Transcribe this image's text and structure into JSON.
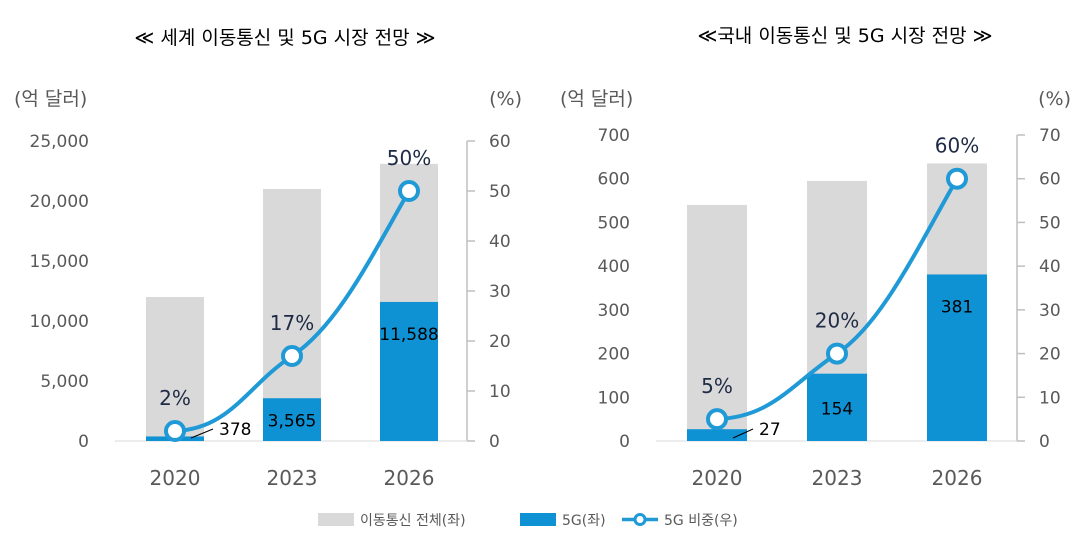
{
  "colors": {
    "total": "#d9d9d9",
    "fiveg": "#0f92d4",
    "line": "#1f9ad6",
    "axis": "#bfbfbf"
  },
  "legend": {
    "total": "이동통신 전체(좌)",
    "fiveg": "5G(좌)",
    "share": "5G 비중(우)"
  },
  "chart_data": [
    {
      "type": "bar",
      "title": "≪ 세계 이동통신 및 5G 시장 전망 ≫",
      "ylabel": "(억 달러)",
      "y2label": "(%)",
      "ylim": [
        0,
        25000
      ],
      "y2lim": [
        0,
        60
      ],
      "yticks": [
        "0",
        "5,000",
        "10,000",
        "15,000",
        "20,000",
        "25,000"
      ],
      "y2ticks": [
        "0",
        "10",
        "20",
        "30",
        "40",
        "50",
        "60"
      ],
      "categories": [
        "2020",
        "2023",
        "2026"
      ],
      "series": [
        {
          "name": "이동통신 전체(좌)",
          "axis": "left",
          "values": [
            12000,
            21000,
            23100
          ]
        },
        {
          "name": "5G(좌)",
          "axis": "left",
          "values": [
            378,
            3565,
            11588
          ],
          "labels": [
            "378",
            "3,565",
            "11,588"
          ]
        },
        {
          "name": "5G 비중(우)",
          "axis": "right",
          "type": "line",
          "values": [
            2,
            17,
            50
          ],
          "labels": [
            "2%",
            "17%",
            "50%"
          ]
        }
      ]
    },
    {
      "type": "bar",
      "title": "≪국내 이동통신 및 5G 시장 전망 ≫",
      "ylabel": "(억 달러)",
      "y2label": "(%)",
      "ylim": [
        0,
        700
      ],
      "y2lim": [
        0,
        70
      ],
      "yticks": [
        "0",
        "100",
        "200",
        "300",
        "400",
        "500",
        "600",
        "700"
      ],
      "y2ticks": [
        "0",
        "10",
        "20",
        "30",
        "40",
        "50",
        "60",
        "70"
      ],
      "categories": [
        "2020",
        "2023",
        "2026"
      ],
      "series": [
        {
          "name": "이동통신 전체(좌)",
          "axis": "left",
          "values": [
            540,
            595,
            635
          ]
        },
        {
          "name": "5G(좌)",
          "axis": "left",
          "values": [
            27,
            154,
            381
          ],
          "labels": [
            "27",
            "154",
            "381"
          ]
        },
        {
          "name": "5G 비중(우)",
          "axis": "right",
          "type": "line",
          "values": [
            5,
            20,
            60
          ],
          "labels": [
            "5%",
            "20%",
            "60%"
          ]
        }
      ]
    }
  ]
}
